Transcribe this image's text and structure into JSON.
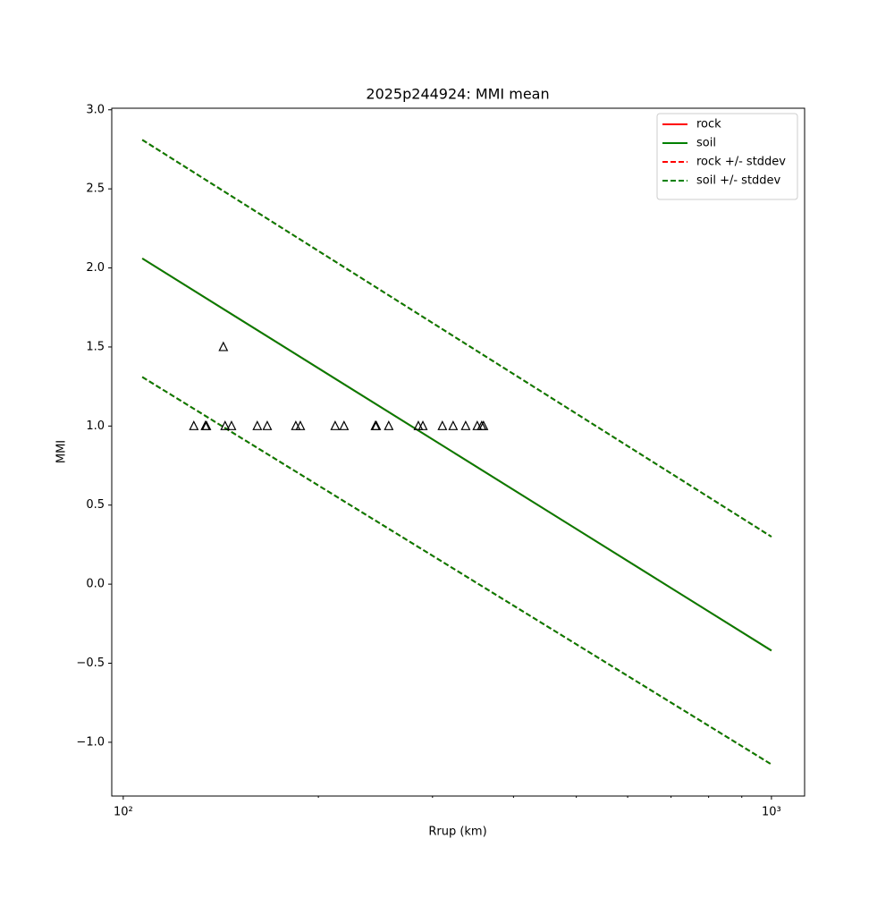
{
  "chart_data": {
    "type": "line",
    "title": "2025p244924: MMI mean",
    "x_label": "Rrup (km)",
    "y_label": "MMI",
    "x_scale": "log",
    "xlim": [
      96,
      1125
    ],
    "ylim": [
      -1.34,
      3.01
    ],
    "xticks": [
      {
        "value": 100,
        "label": "10²"
      },
      {
        "value": 1000,
        "label": "10³"
      }
    ],
    "xminorticks": [
      200,
      300,
      400,
      500,
      600,
      700,
      800,
      900
    ],
    "yticks": [
      {
        "value": -1,
        "label": "−1.0"
      },
      {
        "value": -0.5,
        "label": "−0.5"
      },
      {
        "value": 0,
        "label": "0.0"
      },
      {
        "value": 0.5,
        "label": "0.5"
      },
      {
        "value": 1,
        "label": "1.0"
      },
      {
        "value": 1.5,
        "label": "1.5"
      },
      {
        "value": 2,
        "label": "2.0"
      },
      {
        "value": 2.5,
        "label": "2.5"
      },
      {
        "value": 3,
        "label": "3.0"
      }
    ],
    "legend": "upper right",
    "series": [
      {
        "name": "rock",
        "color": "#ff0000",
        "dashed": false,
        "x": [
          107,
          1000
        ],
        "values": [
          2.06,
          -0.42
        ]
      },
      {
        "name": "soil",
        "color": "#008000",
        "dashed": false,
        "x": [
          107,
          1000
        ],
        "values": [
          2.06,
          -0.42
        ]
      },
      {
        "name": "rock +/- stddev",
        "color": "#ff0000",
        "dashed": true,
        "x": [
          107,
          1000
        ],
        "values": [
          2.81,
          0.3
        ],
        "lower": [
          1.31,
          -1.14
        ]
      },
      {
        "name": "soil +/- stddev",
        "color": "#008000",
        "dashed": true,
        "x": [
          107,
          1000
        ],
        "values": [
          2.81,
          0.3
        ],
        "lower": [
          1.31,
          -1.14
        ]
      }
    ],
    "observations": {
      "marker": "triangle",
      "color": "#000000",
      "x": [
        128.5,
        133.9,
        134.4,
        142.7,
        143.6,
        146.9,
        161.0,
        166.8,
        184.6,
        187.6,
        212.3,
        219.1,
        244.9,
        245.7,
        256.8,
        285.3,
        289.9,
        310.7,
        322.8,
        337.5,
        351.7,
        357.3,
        359.6
      ],
      "values": [
        1,
        1,
        1,
        1.5,
        1,
        1,
        1,
        1,
        1,
        1,
        1,
        1,
        1,
        1,
        1,
        1,
        1,
        1,
        1,
        1,
        1,
        1,
        1
      ]
    }
  }
}
